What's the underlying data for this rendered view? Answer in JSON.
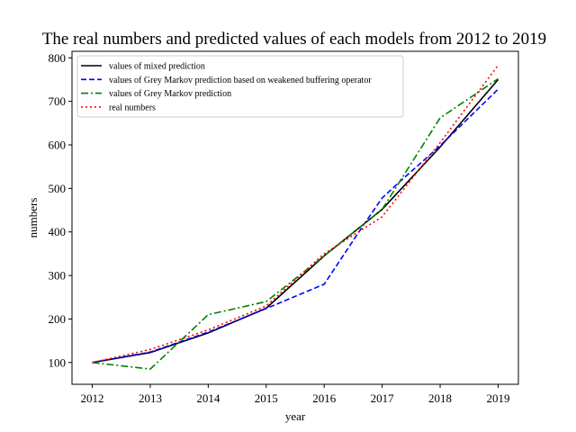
{
  "chart_data": {
    "type": "line",
    "title": "The real numbers and predicted values of each models from 2012 to 2019",
    "xlabel": "year",
    "ylabel": "numbers",
    "x": [
      2012,
      2013,
      2014,
      2015,
      2016,
      2017,
      2018,
      2019
    ],
    "xlim": [
      2011.65,
      2019.35
    ],
    "ylim": [
      50,
      815
    ],
    "yticks": [
      100,
      200,
      300,
      400,
      500,
      600,
      700,
      800
    ],
    "grid": false,
    "legend_position": "top-left",
    "series": [
      {
        "name": "values of mixed prediction",
        "color": "#000000",
        "style": "solid",
        "points": [
          [
            2012,
            100
          ],
          [
            2013,
            123
          ],
          [
            2014,
            168
          ],
          [
            2015,
            225
          ],
          [
            2016,
            345
          ],
          [
            2017,
            452
          ],
          [
            2018,
            595
          ],
          [
            2019,
            750
          ]
        ]
      },
      {
        "name": "values of Grey Markov prediction based on weakened buffering operator",
        "color": "#0000ff",
        "style": "dashed",
        "points": [
          [
            2012,
            100
          ],
          [
            2013,
            124
          ],
          [
            2014,
            170
          ],
          [
            2015,
            224
          ],
          [
            2016,
            280
          ],
          [
            2016.7,
            420
          ],
          [
            2017,
            478
          ],
          [
            2017.3,
            515
          ],
          [
            2018,
            598
          ],
          [
            2019,
            728
          ]
        ]
      },
      {
        "name": "values of Grey Markov prediction",
        "color": "#008000",
        "style": "dashdot",
        "points": [
          [
            2012,
            100
          ],
          [
            2013,
            85
          ],
          [
            2014,
            210
          ],
          [
            2015,
            240
          ],
          [
            2016,
            345
          ],
          [
            2017,
            452
          ],
          [
            2018,
            662
          ],
          [
            2019,
            752
          ]
        ]
      },
      {
        "name": "real numbers",
        "color": "#ff0000",
        "style": "dotted",
        "points": [
          [
            2012,
            100
          ],
          [
            2013,
            130
          ],
          [
            2014,
            175
          ],
          [
            2015,
            230
          ],
          [
            2016,
            350
          ],
          [
            2017,
            435
          ],
          [
            2018,
            605
          ],
          [
            2019,
            783
          ]
        ]
      }
    ]
  }
}
